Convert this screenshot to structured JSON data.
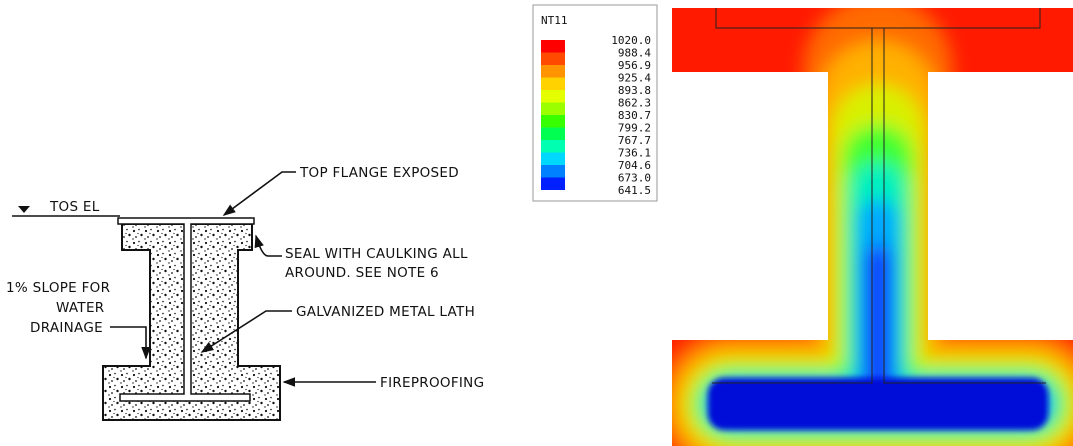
{
  "drawing": {
    "level": "TOS EL",
    "callouts": [
      "TOP FLANGE EXPOSED",
      "SEAL WITH CAULKING ALL",
      "AROUND. SEE NOTE 6",
      "GALVANIZED METAL LATH",
      "FIREPROOFING"
    ],
    "slope_note": [
      "1% SLOPE FOR",
      "WATER",
      "DRAINAGE"
    ]
  },
  "legend": {
    "title": "NT11",
    "labels": [
      "1020.0",
      "988.4",
      "956.9",
      "925.4",
      "893.8",
      "862.3",
      "830.7",
      "799.2",
      "767.7",
      "736.1",
      "704.6",
      "673.0",
      "641.5"
    ]
  }
}
